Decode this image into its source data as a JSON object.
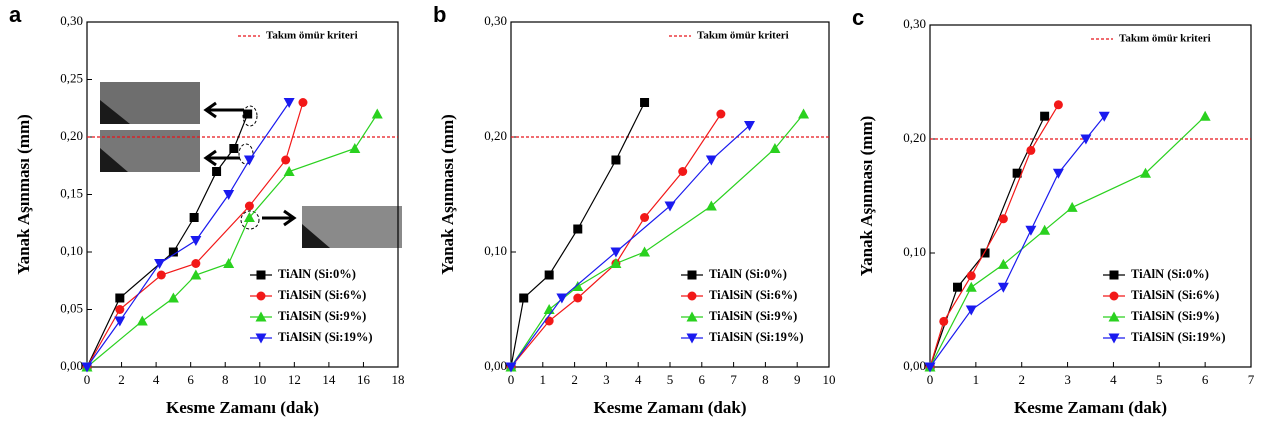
{
  "chart_data": [
    {
      "type": "line",
      "panel": "a",
      "xlabel": "Kesme Zamanı (dak)",
      "ylabel": "Yanak Aşınması (mm)",
      "xlim": [
        0,
        18
      ],
      "xticks": [
        0,
        2,
        4,
        6,
        8,
        10,
        12,
        14,
        16,
        18
      ],
      "ylim": [
        0,
        0.3
      ],
      "yticks": [
        {
          "value": 0,
          "label": "0,00"
        },
        {
          "value": 0.05,
          "label": "0,05"
        },
        {
          "value": 0.1,
          "label": "0,10"
        },
        {
          "value": 0.15,
          "label": "0,15"
        },
        {
          "value": 0.2,
          "label": "0,20"
        },
        {
          "value": 0.25,
          "label": "0,25"
        },
        {
          "value": 0.3,
          "label": "0,30"
        }
      ],
      "hline": 0.2,
      "hline_label": "Takım ömür kriteri",
      "hline_color": "#e8141b",
      "legend": "lower right",
      "series": [
        {
          "name": "TiAlN  (Si:0%)",
          "color": "#000000",
          "marker": "square",
          "x": [
            0,
            1.9,
            5,
            6.2,
            7.5,
            8.5,
            9.3
          ],
          "values": [
            0,
            0.06,
            0.1,
            0.13,
            0.17,
            0.19,
            0.22
          ]
        },
        {
          "name": "TiAlSiN  (Si:6%)",
          "color": "#f21818",
          "marker": "circle",
          "x": [
            0,
            1.9,
            4.3,
            6.3,
            9.4,
            11.5,
            12.5
          ],
          "values": [
            0,
            0.05,
            0.08,
            0.09,
            0.14,
            0.18,
            0.23
          ]
        },
        {
          "name": "TiAlSiN  (Si:9%)",
          "color": "#2ad11f",
          "marker": "triangle-up",
          "x": [
            0,
            3.2,
            5,
            6.3,
            8.2,
            9.4,
            11.7,
            15.5,
            16.8
          ],
          "values": [
            0,
            0.04,
            0.06,
            0.08,
            0.09,
            0.13,
            0.17,
            0.19,
            0.22
          ]
        },
        {
          "name": "TiAlSiN  (Si:19%)",
          "color": "#1a1aef",
          "marker": "triangle-down",
          "x": [
            0,
            1.9,
            4.2,
            6.3,
            8.2,
            9.4,
            11.7
          ],
          "values": [
            0,
            0.04,
            0.09,
            0.11,
            0.15,
            0.18,
            0.23
          ]
        }
      ]
    },
    {
      "type": "line",
      "panel": "b",
      "xlabel": "Kesme Zamanı (dak)",
      "ylabel": "Yanak Aşınması (mm)",
      "xlim": [
        0,
        10
      ],
      "xticks": [
        0,
        1,
        2,
        3,
        4,
        5,
        6,
        7,
        8,
        9,
        10
      ],
      "ylim": [
        0,
        0.3
      ],
      "yticks": [
        {
          "value": 0,
          "label": "0,00"
        },
        {
          "value": 0.1,
          "label": "0,10"
        },
        {
          "value": 0.2,
          "label": "0,20"
        },
        {
          "value": 0.3,
          "label": "0,30"
        }
      ],
      "hline": 0.2,
      "hline_label": "Takım ömür kriteri",
      "hline_color": "#e8141b",
      "legend": "lower right",
      "series": [
        {
          "name": "TiAlN  (Si:0%)",
          "color": "#000000",
          "marker": "square",
          "x": [
            0,
            0.4,
            1.2,
            2.1,
            3.3,
            4.2
          ],
          "values": [
            0,
            0.06,
            0.08,
            0.12,
            0.18,
            0.23
          ]
        },
        {
          "name": "TiAlSiN  (Si:6%)",
          "color": "#f21818",
          "marker": "circle",
          "x": [
            0,
            1.2,
            2.1,
            3.3,
            4.2,
            5.4,
            6.6
          ],
          "values": [
            0,
            0.04,
            0.06,
            0.09,
            0.13,
            0.17,
            0.22
          ]
        },
        {
          "name": "TiAlSiN  (Si:9%)",
          "color": "#2ad11f",
          "marker": "triangle-up",
          "x": [
            0,
            1.2,
            2.1,
            3.3,
            4.2,
            6.3,
            8.3,
            9.2
          ],
          "values": [
            0,
            0.05,
            0.07,
            0.09,
            0.1,
            0.14,
            0.19,
            0.22
          ]
        },
        {
          "name": "TiAlSiN  (Si:19%)",
          "color": "#1a1aef",
          "marker": "triangle-down",
          "x": [
            0,
            1.6,
            3.3,
            5,
            6.3,
            7.5
          ],
          "values": [
            0,
            0.06,
            0.1,
            0.14,
            0.18,
            0.21
          ]
        }
      ]
    },
    {
      "type": "line",
      "panel": "c",
      "xlabel": "Kesme Zamanı (dak)",
      "ylabel": "Yanak Aşınması (mm)",
      "xlim": [
        0,
        7
      ],
      "xticks": [
        0,
        1,
        2,
        3,
        4,
        5,
        6,
        7
      ],
      "ylim": [
        0,
        0.3
      ],
      "yticks": [
        {
          "value": 0,
          "label": "0,00"
        },
        {
          "value": 0.1,
          "label": "0,10"
        },
        {
          "value": 0.2,
          "label": "0,20"
        },
        {
          "value": 0.3,
          "label": "0,30"
        }
      ],
      "hline": 0.2,
      "hline_label": "Takım ömür kriteri",
      "hline_color": "#e8141b",
      "legend": "lower right",
      "series": [
        {
          "name": "TiAlN  (Si:0%)",
          "color": "#000000",
          "marker": "square",
          "x": [
            0,
            0.6,
            1.2,
            1.9,
            2.5
          ],
          "values": [
            0,
            0.07,
            0.1,
            0.17,
            0.22
          ]
        },
        {
          "name": "TiAlSiN  (Si:6%)",
          "color": "#f21818",
          "marker": "circle",
          "x": [
            0,
            0.3,
            0.9,
            1.6,
            2.2,
            2.8
          ],
          "values": [
            0,
            0.04,
            0.08,
            0.13,
            0.19,
            0.23
          ]
        },
        {
          "name": "TiAlSiN  (Si:9%)",
          "color": "#2ad11f",
          "marker": "triangle-up",
          "x": [
            0,
            0.9,
            1.6,
            2.5,
            3.1,
            4.7,
            6
          ],
          "values": [
            0,
            0.07,
            0.09,
            0.12,
            0.14,
            0.17,
            0.22
          ]
        },
        {
          "name": "TiAlSiN  (Si:19%)",
          "color": "#1a1aef",
          "marker": "triangle-down",
          "x": [
            0,
            0.9,
            1.6,
            2.2,
            2.8,
            3.4,
            3.8
          ],
          "values": [
            0,
            0.05,
            0.07,
            0.12,
            0.17,
            0.2,
            0.22
          ]
        }
      ]
    }
  ]
}
